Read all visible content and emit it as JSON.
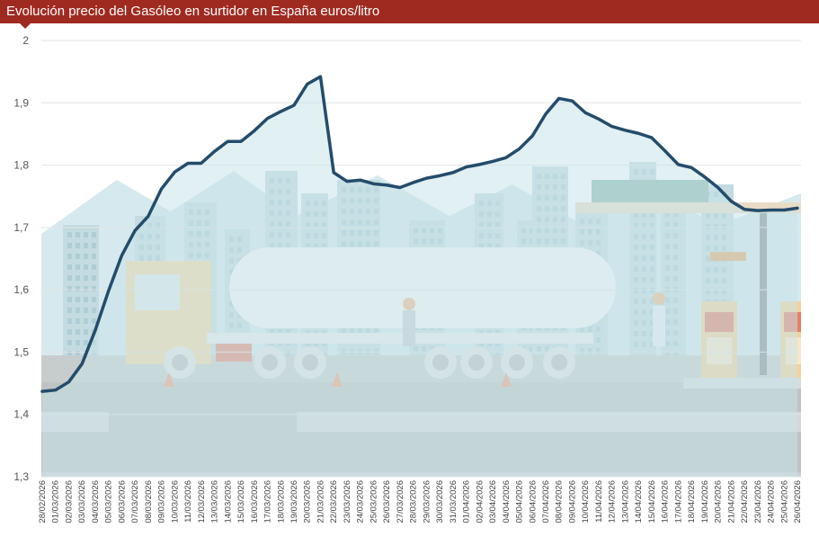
{
  "title": "Evolución precio del Gasóleo en surtidor en España euros/litro",
  "colors": {
    "header": "#9f2a20",
    "line": "#244c6b",
    "area": "#c9e3ea",
    "grid": "#e3e3e3"
  },
  "icons": {
    "illustration": "tanker-truck-gas-station-illustration"
  },
  "chart_data": {
    "type": "area",
    "title": "Evolución precio del Gasóleo en surtidor en España euros/litro",
    "xlabel": "",
    "ylabel": "",
    "ylim": [
      1.3,
      2.0
    ],
    "grid": true,
    "yticks": [
      1.3,
      1.4,
      1.5,
      1.6,
      1.7,
      1.8,
      1.9,
      2.0
    ],
    "ytick_labels": [
      "1,3",
      "1,4",
      "1,5",
      "1,6",
      "1,7",
      "1,8",
      "1,9",
      "2"
    ],
    "x": [
      "28/02/2026",
      "01/03/2026",
      "02/03/2026",
      "03/03/2026",
      "04/03/2026",
      "05/03/2026",
      "06/03/2026",
      "07/03/2026",
      "08/03/2026",
      "09/03/2026",
      "10/03/2026",
      "11/03/2026",
      "12/03/2026",
      "13/03/2026",
      "14/03/2026",
      "15/03/2026",
      "16/03/2026",
      "17/03/2026",
      "18/03/2026",
      "19/03/2026",
      "20/03/2026",
      "21/03/2026",
      "22/03/2026",
      "23/03/2026",
      "24/03/2026",
      "25/03/2026",
      "26/03/2026",
      "27/03/2026",
      "28/03/2026",
      "29/03/2026",
      "30/03/2026",
      "31/03/2026",
      "01/04/2026",
      "02/04/2026",
      "03/04/2026",
      "04/04/2026",
      "05/04/2026",
      "06/04/2026",
      "07/04/2026",
      "08/04/2026",
      "09/04/2026",
      "10/04/2026",
      "11/04/2026",
      "12/04/2026",
      "13/04/2026",
      "14/04/2026",
      "15/04/2026",
      "16/04/2026",
      "17/04/2026",
      "18/04/2026",
      "19/04/2026",
      "20/04/2026",
      "21/04/2026",
      "22/04/2026",
      "23/04/2026",
      "24/04/2026",
      "25/04/2026",
      "26/04/2026"
    ],
    "series": [
      {
        "name": "Gasóleo euros/litro",
        "values": [
          1.437,
          1.439,
          1.452,
          1.481,
          1.535,
          1.598,
          1.655,
          1.695,
          1.718,
          1.762,
          1.789,
          1.803,
          1.803,
          1.822,
          1.838,
          1.838,
          1.855,
          1.875,
          1.886,
          1.896,
          1.93,
          1.942,
          1.788,
          1.774,
          1.776,
          1.77,
          1.768,
          1.764,
          1.772,
          1.779,
          1.783,
          1.788,
          1.797,
          1.801,
          1.806,
          1.812,
          1.826,
          1.847,
          1.882,
          1.907,
          1.903,
          1.884,
          1.874,
          1.862,
          1.856,
          1.851,
          1.844,
          1.823,
          1.801,
          1.796,
          1.781,
          1.764,
          1.742,
          1.729,
          1.727,
          1.728,
          1.728,
          1.731
        ]
      }
    ]
  }
}
